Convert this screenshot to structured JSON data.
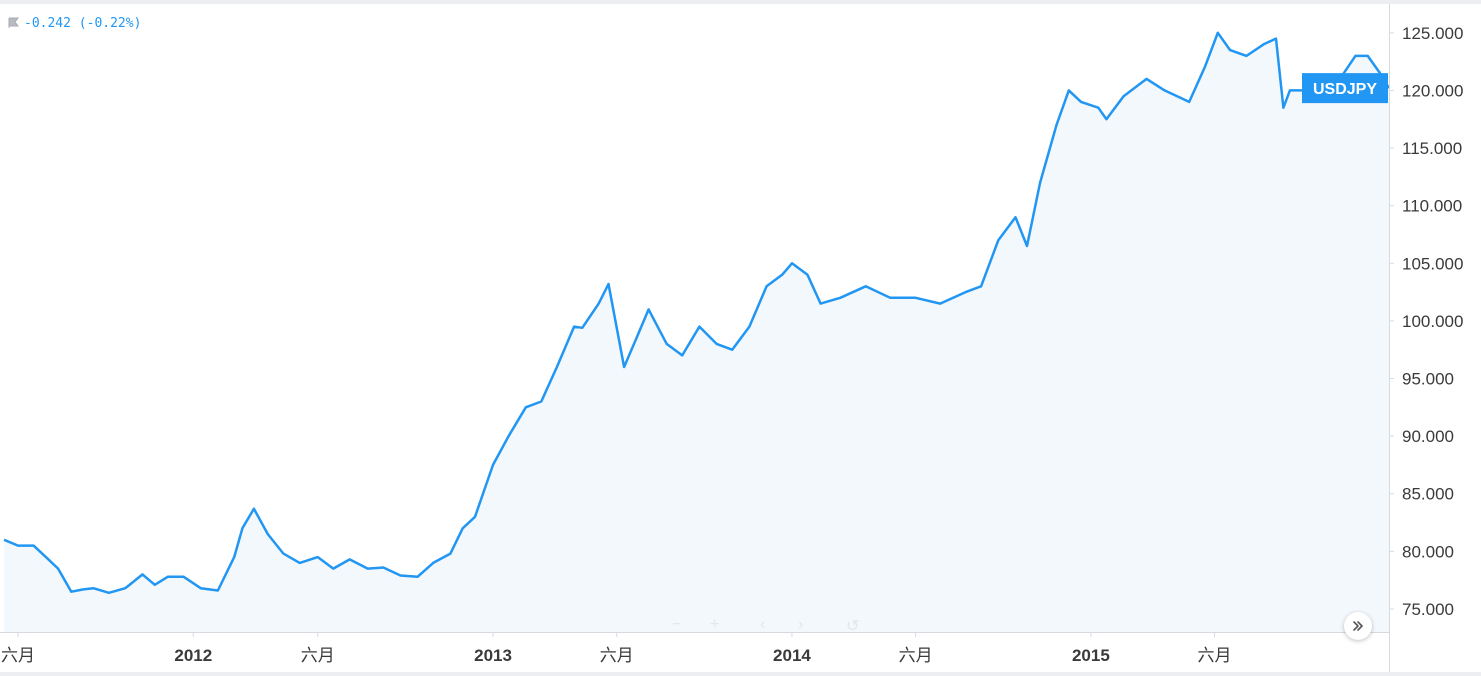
{
  "header": {
    "change_text": "-0.242 (-0.22%)",
    "flag_icon": "flag-icon"
  },
  "nav_controls": {
    "zoom_out": "−",
    "zoom_in": "+",
    "scroll_left": "‹",
    "scroll_right": "›",
    "reset": "↺"
  },
  "expand_icon": "double-chevron-right-icon",
  "colors": {
    "line": "#2196f3",
    "area_fill": "#f3f8fd",
    "axis_text": "#3a3a3a",
    "axis_line": "#d6dadf",
    "label_bg": "#2196f3",
    "label_text": "#ffffff"
  },
  "chart_data": {
    "type": "area",
    "series": [
      {
        "name": "USDJPY",
        "x": [
          "2011-05-15",
          "2011-06-01",
          "2011-06-20",
          "2011-07-05",
          "2011-07-20",
          "2011-08-05",
          "2011-08-20",
          "2011-09-01",
          "2011-09-20",
          "2011-10-10",
          "2011-10-31",
          "2011-11-15",
          "2011-12-01",
          "2011-12-20",
          "2012-01-10",
          "2012-01-31",
          "2012-02-20",
          "2012-03-01",
          "2012-03-15",
          "2012-04-01",
          "2012-04-20",
          "2012-05-10",
          "2012-06-01",
          "2012-06-20",
          "2012-07-10",
          "2012-08-01",
          "2012-08-20",
          "2012-09-10",
          "2012-10-01",
          "2012-10-20",
          "2012-11-10",
          "2012-11-25",
          "2012-12-10",
          "2013-01-01",
          "2013-01-20",
          "2013-02-10",
          "2013-03-01",
          "2013-03-20",
          "2013-04-10",
          "2013-04-20",
          "2013-05-10",
          "2013-05-22",
          "2013-06-10",
          "2013-06-25",
          "2013-07-10",
          "2013-08-01",
          "2013-08-20",
          "2013-09-10",
          "2013-10-01",
          "2013-10-20",
          "2013-11-10",
          "2013-12-01",
          "2013-12-20",
          "2014-01-01",
          "2014-01-20",
          "2014-02-05",
          "2014-03-01",
          "2014-04-01",
          "2014-05-01",
          "2014-06-01",
          "2014-07-01",
          "2014-08-01",
          "2014-08-20",
          "2014-09-10",
          "2014-10-01",
          "2014-10-15",
          "2014-10-31",
          "2014-11-20",
          "2014-12-05",
          "2014-12-20",
          "2015-01-10",
          "2015-01-20",
          "2015-02-10",
          "2015-03-10",
          "2015-04-01",
          "2015-05-01",
          "2015-05-20",
          "2015-06-05",
          "2015-06-20",
          "2015-07-10",
          "2015-07-31",
          "2015-08-15",
          "2015-08-24",
          "2015-09-01",
          "2015-09-20",
          "2015-10-10",
          "2015-11-01",
          "2015-11-20",
          "2015-12-05",
          "2015-12-20",
          "2015-12-31"
        ],
        "values": [
          81.0,
          80.5,
          80.5,
          79.5,
          78.5,
          76.5,
          76.7,
          76.8,
          76.4,
          76.8,
          78.0,
          77.1,
          77.8,
          77.8,
          76.8,
          76.6,
          79.5,
          82.0,
          83.7,
          81.5,
          79.8,
          79.0,
          79.5,
          78.5,
          79.3,
          78.5,
          78.6,
          77.9,
          77.8,
          79.0,
          79.8,
          82.0,
          83.0,
          87.5,
          90.0,
          92.5,
          93.0,
          96.0,
          99.5,
          99.4,
          101.5,
          103.2,
          96.0,
          98.5,
          101.0,
          98.0,
          97.0,
          99.5,
          98.0,
          97.5,
          99.5,
          103.0,
          104.0,
          105.0,
          104.0,
          101.5,
          102.0,
          103.0,
          102.0,
          102.0,
          101.5,
          102.5,
          103.0,
          107.0,
          109.0,
          106.5,
          112.0,
          117.0,
          120.0,
          119.0,
          118.5,
          117.5,
          119.5,
          121.0,
          120.0,
          119.0,
          122.0,
          125.0,
          123.5,
          123.0,
          124.0,
          124.5,
          118.5,
          120.0,
          120.0,
          120.0,
          121.0,
          123.0,
          123.0,
          121.5,
          120.2
        ]
      }
    ],
    "current_price": 120.2,
    "price_label": "USDJPY",
    "ylim": [
      73.0,
      127.5
    ],
    "y_ticks": [
      75,
      80,
      85,
      90,
      95,
      100,
      105,
      110,
      115,
      120,
      125
    ],
    "y_tick_labels": [
      "75.000",
      "80.000",
      "85.000",
      "90.000",
      "95.000",
      "100.000",
      "105.000",
      "110.000",
      "115.000",
      "120.000",
      "125.000"
    ],
    "xlim": [
      "2011-05-10",
      "2015-12-31"
    ],
    "x_ticks": [
      {
        "date": "2011-06-01",
        "label": "六月",
        "bold": false
      },
      {
        "date": "2012-01-01",
        "label": "2012",
        "bold": true
      },
      {
        "date": "2012-06-01",
        "label": "六月",
        "bold": false
      },
      {
        "date": "2013-01-01",
        "label": "2013",
        "bold": true
      },
      {
        "date": "2013-06-01",
        "label": "六月",
        "bold": false
      },
      {
        "date": "2014-01-01",
        "label": "2014",
        "bold": true
      },
      {
        "date": "2014-06-01",
        "label": "六月",
        "bold": false
      },
      {
        "date": "2015-01-01",
        "label": "2015",
        "bold": true
      },
      {
        "date": "2015-06-01",
        "label": "六月",
        "bold": false
      }
    ],
    "grid": false,
    "legend": "none"
  }
}
